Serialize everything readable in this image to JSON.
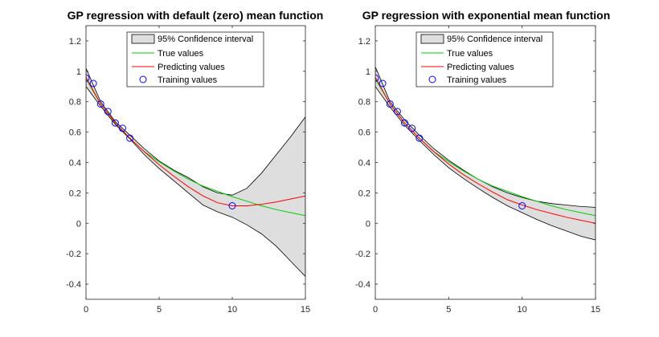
{
  "chart_data": [
    {
      "type": "line",
      "title": "GP regression with default (zero) mean function",
      "xlabel": "",
      "ylabel": "",
      "xlim": [
        0,
        15
      ],
      "ylim": [
        -0.5,
        1.3
      ],
      "xticks": [
        0,
        5,
        10,
        15
      ],
      "yticks": [
        -0.4,
        -0.2,
        0,
        0.2,
        0.4,
        0.6,
        0.8,
        1,
        1.2
      ],
      "grid": false,
      "legend_position": "top",
      "legend": [
        "95% Confidence interval",
        "True values",
        "Predicting values",
        "Training values"
      ],
      "x": [
        0,
        1,
        2,
        3,
        4,
        5,
        6,
        7,
        8,
        9,
        10,
        11,
        12,
        13,
        14,
        15
      ],
      "series": [
        {
          "name": "95% Confidence interval (upper)",
          "values": [
            1.02,
            0.8,
            0.67,
            0.58,
            0.49,
            0.41,
            0.35,
            0.3,
            0.24,
            0.2,
            0.185,
            0.23,
            0.33,
            0.45,
            0.57,
            0.7
          ]
        },
        {
          "name": "95% Confidence interval (lower)",
          "values": [
            0.9,
            0.77,
            0.65,
            0.555,
            0.45,
            0.36,
            0.28,
            0.2,
            0.12,
            0.075,
            0.04,
            -0.01,
            -0.07,
            -0.15,
            -0.25,
            -0.35
          ]
        },
        {
          "name": "True values",
          "values": [
            0.95,
            0.785,
            0.66,
            0.56,
            0.47,
            0.405,
            0.345,
            0.29,
            0.245,
            0.21,
            0.175,
            0.145,
            0.115,
            0.09,
            0.07,
            0.05
          ]
        },
        {
          "name": "Predicting values",
          "values": [
            0.96,
            0.785,
            0.66,
            0.56,
            0.47,
            0.385,
            0.31,
            0.24,
            0.18,
            0.135,
            0.115,
            0.115,
            0.125,
            0.14,
            0.16,
            0.18
          ]
        }
      ],
      "training_points": {
        "x": [
          0,
          0.5,
          1,
          1.5,
          2,
          2.5,
          3,
          10
        ],
        "y": [
          0.955,
          0.92,
          0.785,
          0.735,
          0.66,
          0.625,
          0.56,
          0.115
        ]
      }
    },
    {
      "type": "line",
      "title": "GP regression with exponential mean function",
      "xlabel": "",
      "ylabel": "",
      "xlim": [
        0,
        15
      ],
      "ylim": [
        -0.5,
        1.3
      ],
      "xticks": [
        0,
        5,
        10,
        15
      ],
      "yticks": [
        -0.4,
        -0.2,
        0,
        0.2,
        0.4,
        0.6,
        0.8,
        1,
        1.2
      ],
      "grid": false,
      "legend_position": "top",
      "legend": [
        "95% Confidence interval",
        "True values",
        "Predicting values",
        "Training values"
      ],
      "x": [
        0,
        1,
        2,
        3,
        4,
        5,
        6,
        7,
        8,
        9,
        10,
        11,
        12,
        13,
        14,
        15
      ],
      "series": [
        {
          "name": "95% Confidence interval (upper)",
          "values": [
            1.03,
            0.8,
            0.68,
            0.58,
            0.49,
            0.415,
            0.35,
            0.29,
            0.24,
            0.2,
            0.17,
            0.145,
            0.13,
            0.12,
            0.11,
            0.105
          ]
        },
        {
          "name": "95% Confidence interval (lower)",
          "values": [
            0.9,
            0.765,
            0.645,
            0.545,
            0.45,
            0.365,
            0.295,
            0.23,
            0.17,
            0.115,
            0.07,
            0.025,
            -0.015,
            -0.05,
            -0.085,
            -0.11
          ]
        },
        {
          "name": "True values",
          "values": [
            0.95,
            0.785,
            0.66,
            0.56,
            0.47,
            0.405,
            0.345,
            0.29,
            0.245,
            0.21,
            0.175,
            0.145,
            0.115,
            0.09,
            0.07,
            0.05
          ]
        },
        {
          "name": "Predicting values",
          "values": [
            0.96,
            0.785,
            0.66,
            0.56,
            0.47,
            0.39,
            0.32,
            0.26,
            0.205,
            0.155,
            0.12,
            0.09,
            0.065,
            0.04,
            0.02,
            0.0
          ]
        }
      ],
      "training_points": {
        "x": [
          0,
          0.5,
          1,
          1.5,
          2,
          2.5,
          3,
          10
        ],
        "y": [
          0.955,
          0.92,
          0.785,
          0.735,
          0.66,
          0.625,
          0.56,
          0.115
        ]
      }
    }
  ],
  "colors": {
    "ci_fill": "#dedede",
    "ci_edge": "#000000",
    "true_line": "#00cc00",
    "pred_line": "#ff0000",
    "marker": "#0000ff",
    "axes": "#262626"
  }
}
